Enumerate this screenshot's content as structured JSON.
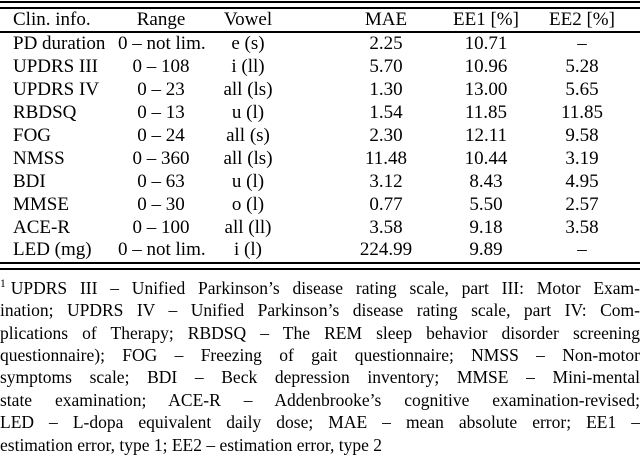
{
  "table": {
    "columns": [
      "Clin. info.",
      "Range",
      "Vowel",
      "MAE",
      "EE1 [%]",
      "EE2 [%]"
    ],
    "rows": [
      {
        "clin": "PD duration",
        "range": "0 – not lim.",
        "vowel": "e (s)",
        "mae": "2.25",
        "ee1": "10.71",
        "ee2": "–"
      },
      {
        "clin": "UPDRS III",
        "range": "0 – 108",
        "vowel": "i (ll)",
        "mae": "5.70",
        "ee1": "10.96",
        "ee2": "5.28"
      },
      {
        "clin": "UPDRS IV",
        "range": "0 – 23",
        "vowel": "all (ls)",
        "mae": "1.30",
        "ee1": "13.00",
        "ee2": "5.65"
      },
      {
        "clin": "RBDSQ",
        "range": "0 – 13",
        "vowel": "u (l)",
        "mae": "1.54",
        "ee1": "11.85",
        "ee2": "11.85"
      },
      {
        "clin": "FOG",
        "range": "0 – 24",
        "vowel": "all (s)",
        "mae": "2.30",
        "ee1": "12.11",
        "ee2": "9.58"
      },
      {
        "clin": "NMSS",
        "range": "0 – 360",
        "vowel": "all (ls)",
        "mae": "11.48",
        "ee1": "10.44",
        "ee2": "3.19"
      },
      {
        "clin": "BDI",
        "range": "0 – 63",
        "vowel": "u (l)",
        "mae": "3.12",
        "ee1": "8.43",
        "ee2": "4.95"
      },
      {
        "clin": "MMSE",
        "range": "0 – 30",
        "vowel": "o (l)",
        "mae": "0.77",
        "ee1": "5.50",
        "ee2": "2.57"
      },
      {
        "clin": "ACE-R",
        "range": "0 – 100",
        "vowel": "all (ll)",
        "mae": "3.58",
        "ee1": "9.18",
        "ee2": "3.58"
      },
      {
        "clin": "LED (mg)",
        "range": "0 – not lim.",
        "vowel": "i (l)",
        "mae": "224.99",
        "ee1": "9.89",
        "ee2": "–"
      }
    ]
  },
  "footnote": {
    "marker": "1",
    "lines": [
      "UPDRS III – Unified Parkinson’s disease rating scale, part III: Motor Exam-",
      "ination; UPDRS IV – Unified Parkinson’s disease rating scale, part IV: Com-",
      "plications of Therapy; RBDSQ – The REM sleep behavior disorder screening",
      "questionnaire); FOG – Freezing of gait questionnaire; NMSS – Non-motor",
      "symptoms scale; BDI – Beck depression inventory; MMSE – Mini-mental",
      "state examination; ACE-R – Addenbrooke’s cognitive examination-revised;",
      "LED – L-dopa equivalent daily dose; MAE – mean absolute error; EE1 –",
      "estimation error, type 1; EE2 – estimation error, type 2"
    ]
  }
}
